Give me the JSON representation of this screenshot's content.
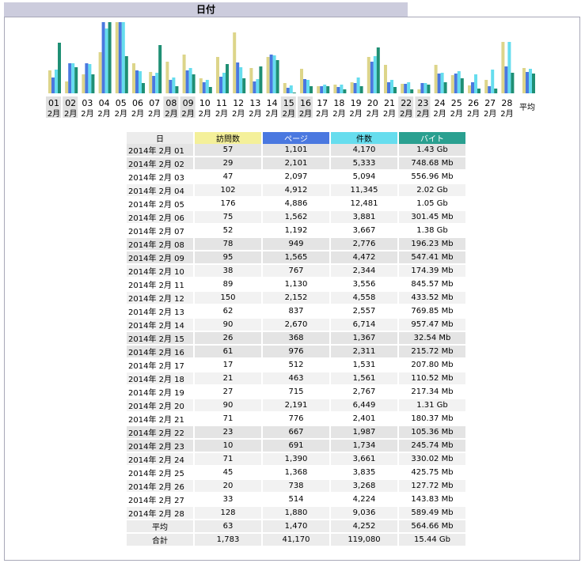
{
  "section_title": "日付",
  "colors": {
    "visits": "#ddd58a",
    "pages": "#4a78e0",
    "hits": "#66ddee",
    "bytes": "#1f8f74"
  },
  "headers": {
    "day": "日",
    "visits": "訪問数",
    "pages": "ページ",
    "hits": "件数",
    "bytes": "バイト"
  },
  "rows": [
    {
      "day": "2014年 2月 01",
      "visits": "57",
      "pages": "1,101",
      "hits": "4,170",
      "bytes": "1.43 Gb",
      "weekend": true
    },
    {
      "day": "2014年 2月 02",
      "visits": "29",
      "pages": "2,101",
      "hits": "5,333",
      "bytes": "748.68 Mb",
      "weekend": true
    },
    {
      "day": "2014年 2月 03",
      "visits": "47",
      "pages": "2,097",
      "hits": "5,094",
      "bytes": "556.96 Mb",
      "weekend": false
    },
    {
      "day": "2014年 2月 04",
      "visits": "102",
      "pages": "4,912",
      "hits": "11,345",
      "bytes": "2.02 Gb",
      "weekend": false
    },
    {
      "day": "2014年 2月 05",
      "visits": "176",
      "pages": "4,886",
      "hits": "12,481",
      "bytes": "1.05 Gb",
      "weekend": false
    },
    {
      "day": "2014年 2月 06",
      "visits": "75",
      "pages": "1,562",
      "hits": "3,881",
      "bytes": "301.45 Mb",
      "weekend": false
    },
    {
      "day": "2014年 2月 07",
      "visits": "52",
      "pages": "1,192",
      "hits": "3,667",
      "bytes": "1.38 Gb",
      "weekend": false
    },
    {
      "day": "2014年 2月 08",
      "visits": "78",
      "pages": "949",
      "hits": "2,776",
      "bytes": "196.23 Mb",
      "weekend": true
    },
    {
      "day": "2014年 2月 09",
      "visits": "95",
      "pages": "1,565",
      "hits": "4,472",
      "bytes": "547.41 Mb",
      "weekend": true
    },
    {
      "day": "2014年 2月 10",
      "visits": "38",
      "pages": "767",
      "hits": "2,344",
      "bytes": "174.39 Mb",
      "weekend": false
    },
    {
      "day": "2014年 2月 11",
      "visits": "89",
      "pages": "1,130",
      "hits": "3,556",
      "bytes": "845.57 Mb",
      "weekend": false
    },
    {
      "day": "2014年 2月 12",
      "visits": "150",
      "pages": "2,152",
      "hits": "4,558",
      "bytes": "433.52 Mb",
      "weekend": false
    },
    {
      "day": "2014年 2月 13",
      "visits": "62",
      "pages": "837",
      "hits": "2,557",
      "bytes": "769.85 Mb",
      "weekend": false
    },
    {
      "day": "2014年 2月 14",
      "visits": "90",
      "pages": "2,670",
      "hits": "6,714",
      "bytes": "957.47 Mb",
      "weekend": false
    },
    {
      "day": "2014年 2月 15",
      "visits": "26",
      "pages": "368",
      "hits": "1,367",
      "bytes": "32.54 Mb",
      "weekend": true
    },
    {
      "day": "2014年 2月 16",
      "visits": "61",
      "pages": "976",
      "hits": "2,311",
      "bytes": "215.72 Mb",
      "weekend": true
    },
    {
      "day": "2014年 2月 17",
      "visits": "17",
      "pages": "512",
      "hits": "1,531",
      "bytes": "207.80 Mb",
      "weekend": false
    },
    {
      "day": "2014年 2月 18",
      "visits": "21",
      "pages": "463",
      "hits": "1,561",
      "bytes": "110.52 Mb",
      "weekend": false
    },
    {
      "day": "2014年 2月 19",
      "visits": "27",
      "pages": "715",
      "hits": "2,767",
      "bytes": "217.34 Mb",
      "weekend": false
    },
    {
      "day": "2014年 2月 20",
      "visits": "90",
      "pages": "2,191",
      "hits": "6,449",
      "bytes": "1.31 Gb",
      "weekend": false
    },
    {
      "day": "2014年 2月 21",
      "visits": "71",
      "pages": "776",
      "hits": "2,401",
      "bytes": "180.37 Mb",
      "weekend": false
    },
    {
      "day": "2014年 2月 22",
      "visits": "23",
      "pages": "667",
      "hits": "1,987",
      "bytes": "105.36 Mb",
      "weekend": true
    },
    {
      "day": "2014年 2月 23",
      "visits": "10",
      "pages": "691",
      "hits": "1,734",
      "bytes": "245.74 Mb",
      "weekend": true
    },
    {
      "day": "2014年 2月 24",
      "visits": "71",
      "pages": "1,390",
      "hits": "3,661",
      "bytes": "330.02 Mb",
      "weekend": false
    },
    {
      "day": "2014年 2月 25",
      "visits": "45",
      "pages": "1,368",
      "hits": "3,835",
      "bytes": "425.75 Mb",
      "weekend": false
    },
    {
      "day": "2014年 2月 26",
      "visits": "20",
      "pages": "738",
      "hits": "3,268",
      "bytes": "127.72 Mb",
      "weekend": false
    },
    {
      "day": "2014年 2月 27",
      "visits": "33",
      "pages": "514",
      "hits": "4,224",
      "bytes": "143.83 Mb",
      "weekend": false
    },
    {
      "day": "2014年 2月 28",
      "visits": "128",
      "pages": "1,880",
      "hits": "9,036",
      "bytes": "589.49 Mb",
      "weekend": false
    }
  ],
  "average": {
    "label": "平均",
    "visits": "63",
    "pages": "1,470",
    "hits": "4,252",
    "bytes": "564.66 Mb"
  },
  "total": {
    "label": "合計",
    "visits": "1,783",
    "pages": "41,170",
    "hits": "119,080",
    "bytes": "15.44 Gb"
  },
  "chart_data": {
    "type": "bar",
    "categories": [
      "01",
      "02",
      "03",
      "04",
      "05",
      "06",
      "07",
      "08",
      "09",
      "10",
      "11",
      "12",
      "13",
      "14",
      "15",
      "16",
      "17",
      "18",
      "19",
      "20",
      "21",
      "22",
      "23",
      "24",
      "25",
      "26",
      "27",
      "28"
    ],
    "category_month_label": "2月",
    "weekend_categories": [
      "01",
      "02",
      "08",
      "09",
      "15",
      "16",
      "22",
      "23"
    ],
    "average_label": "平均",
    "series": [
      {
        "name": "訪問数",
        "color": "#ddd58a",
        "values": [
          57,
          29,
          47,
          102,
          176,
          75,
          52,
          78,
          95,
          38,
          89,
          150,
          62,
          90,
          26,
          61,
          17,
          21,
          27,
          90,
          71,
          23,
          10,
          71,
          45,
          20,
          33,
          128
        ],
        "average": 63
      },
      {
        "name": "ページ",
        "color": "#4a78e0",
        "values": [
          1101,
          2101,
          2097,
          4912,
          4886,
          1562,
          1192,
          949,
          1565,
          767,
          1130,
          2152,
          837,
          2670,
          368,
          976,
          512,
          463,
          715,
          2191,
          776,
          667,
          691,
          1390,
          1368,
          738,
          514,
          1880
        ],
        "average": 1470
      },
      {
        "name": "件数",
        "color": "#66ddee",
        "values": [
          4170,
          5333,
          5094,
          11345,
          12481,
          3881,
          3667,
          2776,
          4472,
          2344,
          3556,
          4558,
          2557,
          6714,
          1367,
          2311,
          1531,
          1561,
          2767,
          6449,
          2401,
          1987,
          1734,
          3661,
          3835,
          3268,
          4224,
          9036
        ],
        "average": 4252
      },
      {
        "name": "バイト",
        "color": "#1f8f74",
        "unit": "Mb",
        "values": [
          1464,
          748.68,
          556.96,
          2068,
          1075,
          301.45,
          1413,
          196.23,
          547.41,
          174.39,
          845.57,
          433.52,
          769.85,
          957.47,
          32.54,
          215.72,
          207.8,
          110.52,
          217.34,
          1341,
          180.37,
          105.36,
          245.74,
          330.02,
          425.75,
          127.72,
          143.83,
          589.49
        ],
        "average": 564.66
      }
    ]
  }
}
